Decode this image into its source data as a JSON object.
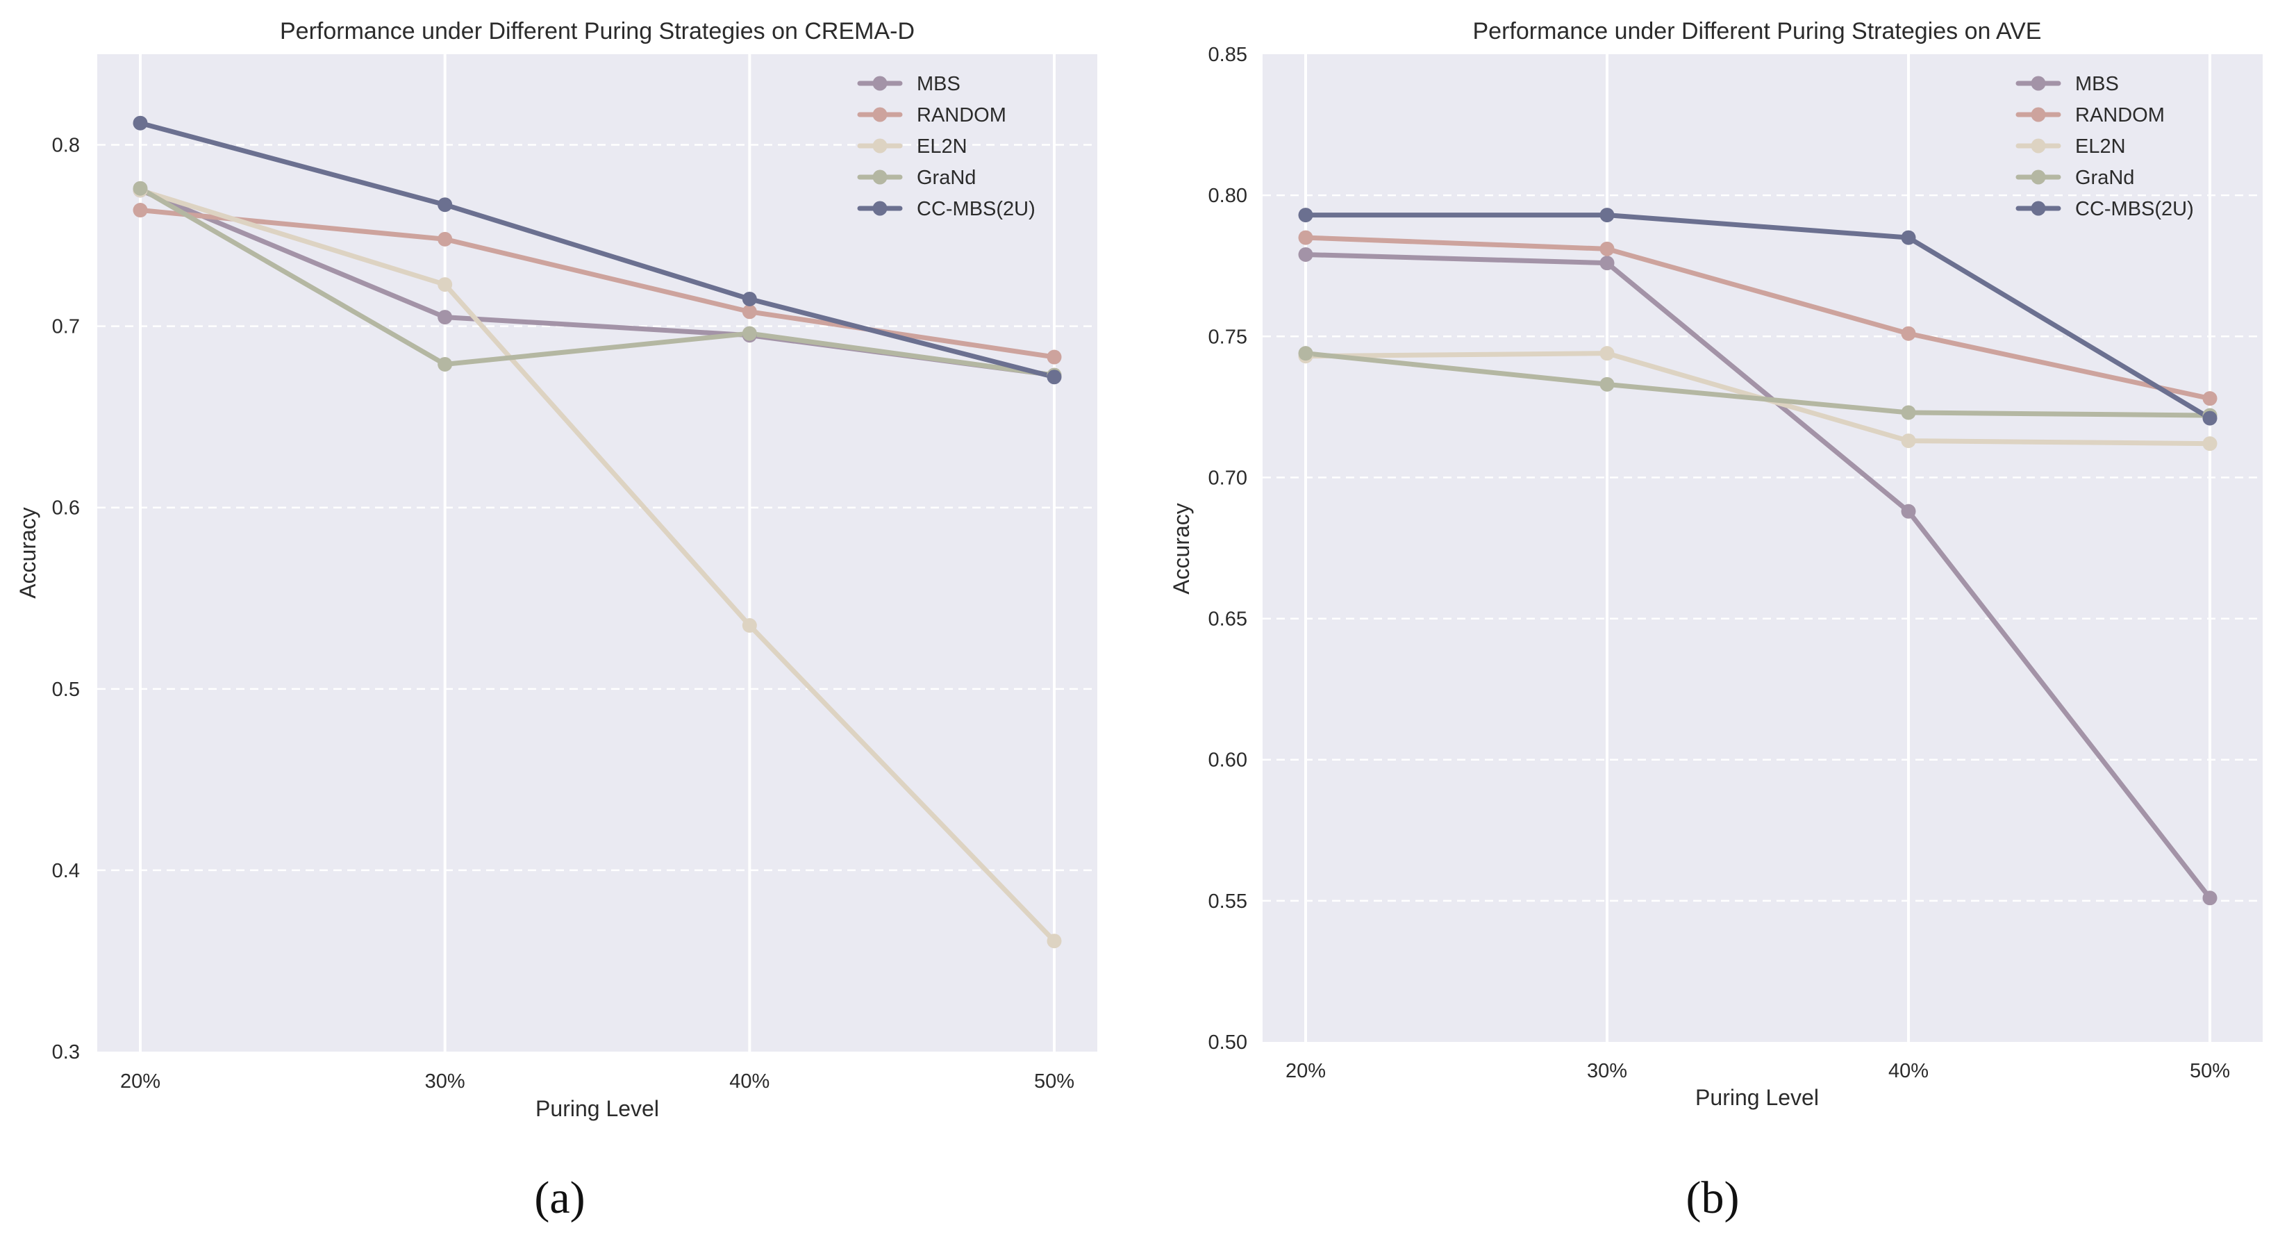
{
  "colors": {
    "MBS": "#a393a7",
    "RANDOM": "#cda39d",
    "EL2N": "#ddd3c2",
    "GraNd": "#b4b7a2",
    "CC-MBS(2U)": "#6b7090"
  },
  "chart_data": [
    {
      "type": "line",
      "title": "Performance under Different Puring Strategies on CREMA-D",
      "xlabel": "Puring Level",
      "ylabel": "Accuracy",
      "categories": [
        "20%",
        "30%",
        "40%",
        "50%"
      ],
      "ylim": [
        0.3,
        0.85
      ],
      "yticks": [
        0.3,
        0.4,
        0.5,
        0.6,
        0.7,
        0.8
      ],
      "ytick_labels": [
        "0.3",
        "0.4",
        "0.5",
        "0.6",
        "0.7",
        "0.8"
      ],
      "grid": true,
      "legend_position": "top-right",
      "panel_label": "(a)",
      "series": [
        {
          "name": "MBS",
          "values": [
            0.775,
            0.705,
            0.695,
            0.673
          ]
        },
        {
          "name": "RANDOM",
          "values": [
            0.764,
            0.748,
            0.708,
            0.683
          ]
        },
        {
          "name": "EL2N",
          "values": [
            0.775,
            0.723,
            0.535,
            0.361
          ]
        },
        {
          "name": "GraNd",
          "values": [
            0.776,
            0.679,
            0.696,
            0.673
          ]
        },
        {
          "name": "CC-MBS(2U)",
          "values": [
            0.812,
            0.767,
            0.715,
            0.672
          ]
        }
      ]
    },
    {
      "type": "line",
      "title": "Performance under Different Puring Strategies on AVE",
      "xlabel": "Puring Level",
      "ylabel": "Accuracy",
      "categories": [
        "20%",
        "30%",
        "40%",
        "50%"
      ],
      "ylim": [
        0.5,
        0.85
      ],
      "yticks": [
        0.5,
        0.55,
        0.6,
        0.65,
        0.7,
        0.75,
        0.8,
        0.85
      ],
      "ytick_labels": [
        "0.50",
        "0.55",
        "0.60",
        "0.65",
        "0.70",
        "0.75",
        "0.80",
        "0.85"
      ],
      "grid": true,
      "legend_position": "top-right",
      "panel_label": "(b)",
      "series": [
        {
          "name": "MBS",
          "values": [
            0.779,
            0.776,
            0.688,
            0.551
          ]
        },
        {
          "name": "RANDOM",
          "values": [
            0.785,
            0.781,
            0.751,
            0.728
          ]
        },
        {
          "name": "EL2N",
          "values": [
            0.743,
            0.744,
            0.713,
            0.712
          ]
        },
        {
          "name": "GraNd",
          "values": [
            0.744,
            0.733,
            0.723,
            0.722
          ]
        },
        {
          "name": "CC-MBS(2U)",
          "values": [
            0.793,
            0.793,
            0.785,
            0.721
          ]
        }
      ]
    }
  ]
}
